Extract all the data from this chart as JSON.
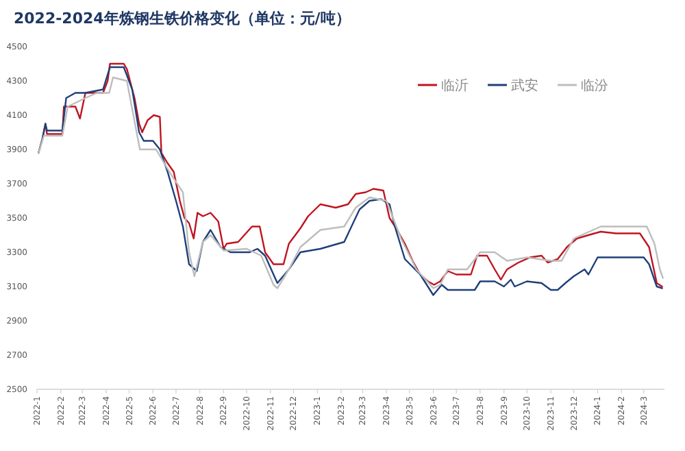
{
  "chart_data": {
    "type": "line",
    "title": "2022-2024年炼钢生铁价格变化（单位：元/吨）",
    "legend": "top right",
    "grid": false,
    "marker": "none",
    "line_style": "solid",
    "xlim": [
      "2022-01-01",
      "2024-03-28"
    ],
    "xticks": [
      {
        "value": "2022-01-01",
        "label": "2022-1"
      },
      {
        "value": "2022-02-01",
        "label": "2022-2"
      },
      {
        "value": "2022-03-01",
        "label": "2022-3"
      },
      {
        "value": "2022-04-01",
        "label": "2022-4"
      },
      {
        "value": "2022-05-01",
        "label": "2022-5"
      },
      {
        "value": "2022-06-01",
        "label": "2022-6"
      },
      {
        "value": "2022-07-01",
        "label": "2022-7"
      },
      {
        "value": "2022-08-01",
        "label": "2022-8"
      },
      {
        "value": "2022-09-01",
        "label": "2022-9"
      },
      {
        "value": "2022-10-01",
        "label": "2022-10"
      },
      {
        "value": "2022-11-01",
        "label": "2022-11"
      },
      {
        "value": "2022-12-01",
        "label": "2022-12"
      },
      {
        "value": "2023-01-01",
        "label": "2023-1"
      },
      {
        "value": "2023-02-01",
        "label": "2023-2"
      },
      {
        "value": "2023-03-01",
        "label": "2023-3"
      },
      {
        "value": "2023-04-01",
        "label": "2023-4"
      },
      {
        "value": "2023-05-01",
        "label": "2023-5"
      },
      {
        "value": "2023-06-01",
        "label": "2023-6"
      },
      {
        "value": "2023-07-01",
        "label": "2023-7"
      },
      {
        "value": "2023-08-01",
        "label": "2023-8"
      },
      {
        "value": "2023-09-01",
        "label": "2023-9"
      },
      {
        "value": "2023-10-01",
        "label": "2023-10"
      },
      {
        "value": "2023-11-01",
        "label": "2023-11"
      },
      {
        "value": "2023-12-01",
        "label": "2023-12"
      },
      {
        "value": "2024-01-01",
        "label": "2024-1"
      },
      {
        "value": "2024-02-01",
        "label": "2024-2"
      },
      {
        "value": "2024-03-01",
        "label": "2024-3"
      }
    ],
    "ylim": [
      2500,
      4500
    ],
    "yticks": [
      2500,
      2700,
      2900,
      3100,
      3300,
      3500,
      3700,
      3900,
      4100,
      4300,
      4500
    ],
    "series": [
      {
        "name": "临沂",
        "color": "#c0141f",
        "x": [
          "2022-01-03",
          "2022-01-08",
          "2022-01-12",
          "2022-01-14",
          "2022-02-03",
          "2022-02-05",
          "2022-02-20",
          "2022-02-26",
          "2022-03-05",
          "2022-03-28",
          "2022-04-03",
          "2022-04-06",
          "2022-04-24",
          "2022-04-28",
          "2022-05-08",
          "2022-05-14",
          "2022-05-18",
          "2022-05-25",
          "2022-06-02",
          "2022-06-10",
          "2022-06-12",
          "2022-06-20",
          "2022-06-28",
          "2022-07-06",
          "2022-07-12",
          "2022-07-18",
          "2022-07-24",
          "2022-07-29",
          "2022-08-05",
          "2022-08-15",
          "2022-08-25",
          "2022-09-01",
          "2022-09-05",
          "2022-09-20",
          "2022-10-08",
          "2022-10-18",
          "2022-10-25",
          "2022-11-05",
          "2022-11-18",
          "2022-11-25",
          "2022-12-10",
          "2022-12-20",
          "2023-01-05",
          "2023-01-25",
          "2023-02-10",
          "2023-02-20",
          "2023-03-05",
          "2023-03-15",
          "2023-03-28",
          "2023-04-05",
          "2023-04-15",
          "2023-04-25",
          "2023-05-05",
          "2023-05-15",
          "2023-05-25",
          "2023-06-02",
          "2023-06-10",
          "2023-06-20",
          "2023-07-01",
          "2023-07-20",
          "2023-07-28",
          "2023-08-10",
          "2023-08-20",
          "2023-08-28",
          "2023-09-05",
          "2023-09-20",
          "2023-10-05",
          "2023-10-20",
          "2023-10-28",
          "2023-11-10",
          "2023-11-22",
          "2023-12-05",
          "2023-12-20",
          "2024-01-05",
          "2024-01-25",
          "2024-02-25",
          "2024-03-08",
          "2024-03-18",
          "2024-03-25"
        ],
        "values": [
          3880,
          3960,
          4050,
          3990,
          3990,
          4150,
          4150,
          4080,
          4230,
          4230,
          4300,
          4400,
          4400,
          4370,
          4200,
          4050,
          4000,
          4070,
          4100,
          4090,
          3880,
          3820,
          3770,
          3600,
          3500,
          3470,
          3380,
          3530,
          3510,
          3530,
          3480,
          3320,
          3350,
          3360,
          3450,
          3450,
          3300,
          3230,
          3230,
          3350,
          3440,
          3510,
          3580,
          3560,
          3580,
          3640,
          3650,
          3670,
          3660,
          3500,
          3430,
          3350,
          3250,
          3170,
          3130,
          3110,
          3130,
          3190,
          3170,
          3170,
          3280,
          3280,
          3200,
          3140,
          3200,
          3240,
          3270,
          3280,
          3240,
          3260,
          3330,
          3380,
          3400,
          3420,
          3410,
          3410,
          3330,
          3120,
          3100
        ]
      },
      {
        "name": "武安",
        "color": "#1f3f7a",
        "x": [
          "2022-01-03",
          "2022-01-08",
          "2022-01-12",
          "2022-01-14",
          "2022-02-03",
          "2022-02-08",
          "2022-02-20",
          "2022-03-05",
          "2022-03-28",
          "2022-04-06",
          "2022-04-24",
          "2022-05-05",
          "2022-05-14",
          "2022-05-20",
          "2022-06-01",
          "2022-06-10",
          "2022-06-20",
          "2022-07-01",
          "2022-07-10",
          "2022-07-18",
          "2022-07-28",
          "2022-08-05",
          "2022-08-15",
          "2022-08-28",
          "2022-09-10",
          "2022-10-05",
          "2022-10-15",
          "2022-10-25",
          "2022-11-10",
          "2022-11-25",
          "2022-12-10",
          "2023-01-05",
          "2023-02-05",
          "2023-02-25",
          "2023-03-10",
          "2023-03-25",
          "2023-04-05",
          "2023-04-12",
          "2023-04-25",
          "2023-05-15",
          "2023-06-01",
          "2023-06-12",
          "2023-06-20",
          "2023-07-25",
          "2023-08-01",
          "2023-08-20",
          "2023-09-01",
          "2023-09-10",
          "2023-09-15",
          "2023-10-01",
          "2023-10-20",
          "2023-11-01",
          "2023-11-10",
          "2023-11-20",
          "2023-12-01",
          "2023-12-15",
          "2023-12-20",
          "2024-01-01",
          "2024-03-01",
          "2024-03-08",
          "2024-03-18",
          "2024-03-25"
        ],
        "values": [
          3880,
          3960,
          4050,
          4010,
          4010,
          4200,
          4230,
          4230,
          4250,
          4380,
          4380,
          4250,
          4000,
          3950,
          3950,
          3900,
          3770,
          3600,
          3450,
          3230,
          3190,
          3360,
          3430,
          3330,
          3300,
          3300,
          3320,
          3280,
          3120,
          3200,
          3300,
          3320,
          3360,
          3550,
          3600,
          3610,
          3580,
          3450,
          3260,
          3170,
          3050,
          3110,
          3080,
          3080,
          3130,
          3130,
          3100,
          3140,
          3100,
          3130,
          3120,
          3080,
          3080,
          3120,
          3160,
          3200,
          3170,
          3270,
          3270,
          3230,
          3100,
          3090
        ]
      },
      {
        "name": "临汾",
        "color": "#bdbdbd",
        "x": [
          "2022-01-03",
          "2022-01-10",
          "2022-02-03",
          "2022-02-10",
          "2022-03-05",
          "2022-03-20",
          "2022-04-05",
          "2022-04-10",
          "2022-04-28",
          "2022-05-15",
          "2022-06-05",
          "2022-06-25",
          "2022-07-10",
          "2022-07-18",
          "2022-07-25",
          "2022-08-05",
          "2022-08-15",
          "2022-09-01",
          "2022-10-01",
          "2022-10-20",
          "2022-11-05",
          "2022-11-10",
          "2022-11-25",
          "2022-12-10",
          "2023-01-05",
          "2023-02-05",
          "2023-02-20",
          "2023-03-10",
          "2023-04-01",
          "2023-04-20",
          "2023-05-10",
          "2023-06-01",
          "2023-06-10",
          "2023-06-20",
          "2023-07-15",
          "2023-08-01",
          "2023-08-20",
          "2023-09-05",
          "2023-10-01",
          "2023-11-01",
          "2023-11-15",
          "2023-12-01",
          "2024-01-05",
          "2024-03-05",
          "2024-03-15",
          "2024-03-22",
          "2024-03-26"
        ],
        "values": [
          3880,
          3980,
          3980,
          4150,
          4200,
          4230,
          4230,
          4320,
          4300,
          3900,
          3900,
          3750,
          3650,
          3300,
          3160,
          3360,
          3400,
          3310,
          3320,
          3280,
          3110,
          3090,
          3200,
          3330,
          3430,
          3450,
          3560,
          3620,
          3600,
          3380,
          3200,
          3090,
          3110,
          3200,
          3200,
          3300,
          3300,
          3250,
          3270,
          3250,
          3250,
          3380,
          3450,
          3450,
          3350,
          3200,
          3150
        ]
      }
    ]
  }
}
